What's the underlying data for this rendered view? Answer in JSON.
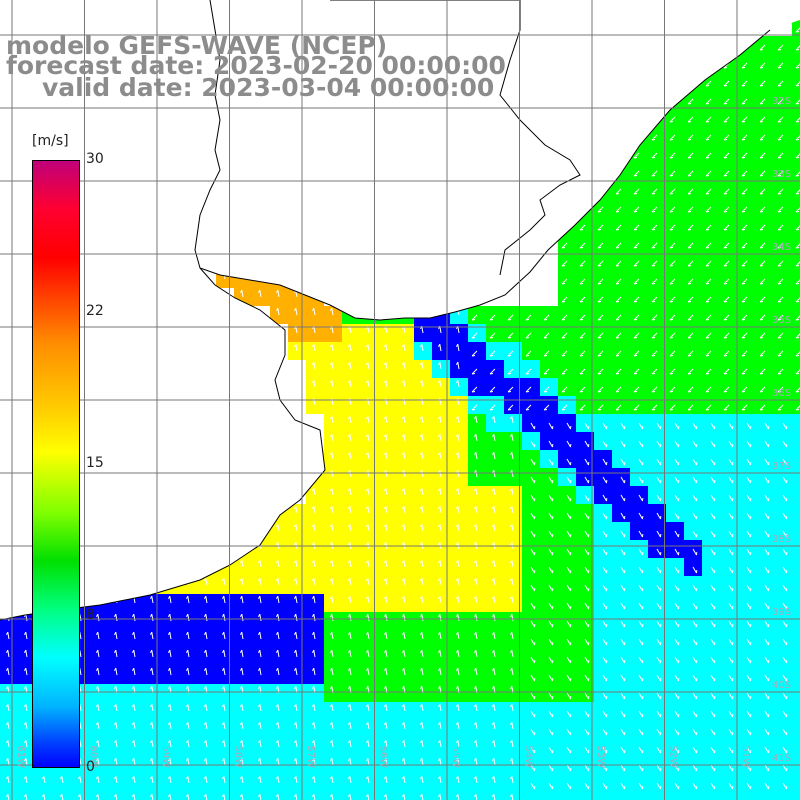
{
  "title": {
    "line1": "modelo GEFS-WAVE (NCEP)",
    "line2": "forecast date: 2023-02-20 00:00:00",
    "line3": "valid date: 2023-03-04 00:00:00"
  },
  "colorbar": {
    "unit": "[m/s]",
    "ticks": [
      "30",
      "22",
      "15",
      "8",
      "0"
    ],
    "colors": [
      "#c0007a",
      "#ff0000",
      "#ffff00",
      "#00e000",
      "#00ffff",
      "#0000ff"
    ]
  },
  "map": {
    "ocean_colors": {
      "low": "#0000ff",
      "mid_low": "#00ffff",
      "mid": "#00ff00",
      "high": "#ffff00",
      "very_high": "#ffb000"
    },
    "land_color": "#ffffff",
    "graticule_color": "#777777",
    "coastline_color": "#000000",
    "arrow_color": "#ffffff",
    "lat_labels": [
      "32S",
      "33S",
      "34S",
      "35S",
      "36S",
      "37S",
      "38S",
      "39S",
      "40S",
      "41S"
    ],
    "lon_labels": [
      "61W",
      "60W",
      "59W",
      "58W",
      "57W",
      "56W",
      "55W",
      "54W",
      "53W",
      "52W",
      "51W"
    ]
  }
}
